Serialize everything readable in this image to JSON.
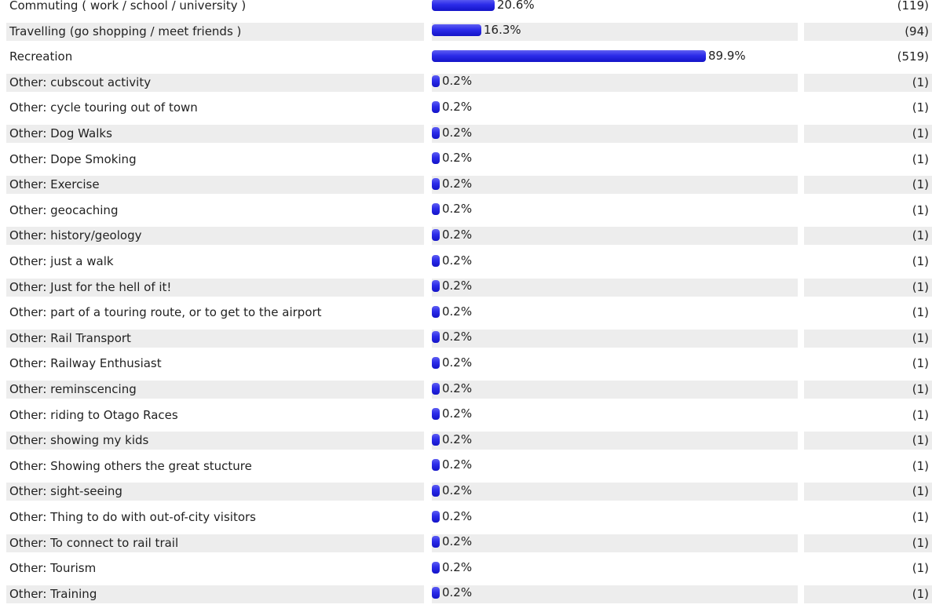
{
  "chart_data": {
    "type": "bar",
    "orientation": "horizontal",
    "colors": {
      "bar": "#2c2cea",
      "row_shade": "#ededed"
    },
    "rows": [
      {
        "label": "Commuting ( work / school / university )",
        "percent": 20.6,
        "percent_label": "20.6%",
        "count_label": "(119)"
      },
      {
        "label": "Travelling (go shopping / meet friends )",
        "percent": 16.3,
        "percent_label": "16.3%",
        "count_label": "(94)"
      },
      {
        "label": "Recreation",
        "percent": 89.9,
        "percent_label": "89.9%",
        "count_label": "(519)"
      },
      {
        "label": "Other: cubscout activity",
        "percent": 0.2,
        "percent_label": "0.2%",
        "count_label": "(1)"
      },
      {
        "label": "Other: cycle touring out of town",
        "percent": 0.2,
        "percent_label": "0.2%",
        "count_label": "(1)"
      },
      {
        "label": "Other: Dog Walks",
        "percent": 0.2,
        "percent_label": "0.2%",
        "count_label": "(1)"
      },
      {
        "label": "Other: Dope Smoking",
        "percent": 0.2,
        "percent_label": "0.2%",
        "count_label": "(1)"
      },
      {
        "label": "Other: Exercise",
        "percent": 0.2,
        "percent_label": "0.2%",
        "count_label": "(1)"
      },
      {
        "label": "Other: geocaching",
        "percent": 0.2,
        "percent_label": "0.2%",
        "count_label": "(1)"
      },
      {
        "label": "Other: history/geology",
        "percent": 0.2,
        "percent_label": "0.2%",
        "count_label": "(1)"
      },
      {
        "label": "Other: just a walk",
        "percent": 0.2,
        "percent_label": "0.2%",
        "count_label": "(1)"
      },
      {
        "label": "Other: Just for the hell of it!",
        "percent": 0.2,
        "percent_label": "0.2%",
        "count_label": "(1)"
      },
      {
        "label": "Other: part of a touring route, or to get to the airport",
        "percent": 0.2,
        "percent_label": "0.2%",
        "count_label": "(1)"
      },
      {
        "label": "Other: Rail Transport",
        "percent": 0.2,
        "percent_label": "0.2%",
        "count_label": "(1)"
      },
      {
        "label": "Other: Railway Enthusiast",
        "percent": 0.2,
        "percent_label": "0.2%",
        "count_label": "(1)"
      },
      {
        "label": "Other: reminscencing",
        "percent": 0.2,
        "percent_label": "0.2%",
        "count_label": "(1)"
      },
      {
        "label": "Other: riding to Otago Races",
        "percent": 0.2,
        "percent_label": "0.2%",
        "count_label": "(1)"
      },
      {
        "label": "Other: showing my kids",
        "percent": 0.2,
        "percent_label": "0.2%",
        "count_label": "(1)"
      },
      {
        "label": "Other: Showing others the great stucture",
        "percent": 0.2,
        "percent_label": "0.2%",
        "count_label": "(1)"
      },
      {
        "label": "Other: sight-seeing",
        "percent": 0.2,
        "percent_label": "0.2%",
        "count_label": "(1)"
      },
      {
        "label": "Other: Thing to do with out-of-city visitors",
        "percent": 0.2,
        "percent_label": "0.2%",
        "count_label": "(1)"
      },
      {
        "label": "Other: To connect to rail trail",
        "percent": 0.2,
        "percent_label": "0.2%",
        "count_label": "(1)"
      },
      {
        "label": "Other: Tourism",
        "percent": 0.2,
        "percent_label": "0.2%",
        "count_label": "(1)"
      },
      {
        "label": "Other: Training",
        "percent": 0.2,
        "percent_label": "0.2%",
        "count_label": "(1)"
      }
    ]
  }
}
